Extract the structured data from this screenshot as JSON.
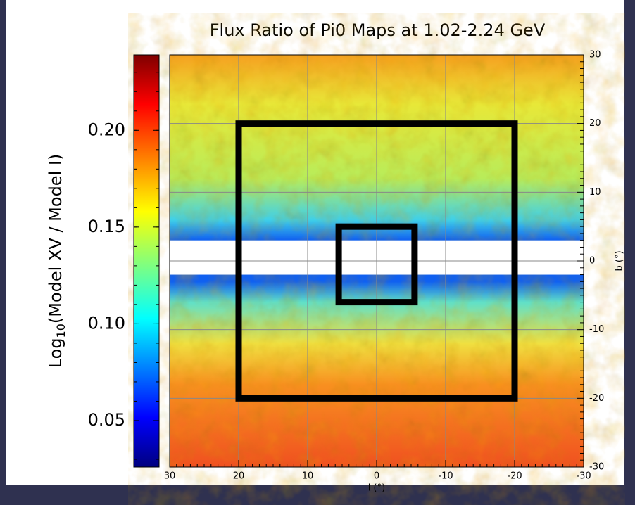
{
  "chart_data": {
    "type": "heatmap",
    "title": "Flux Ratio of Pi0 Maps at 1.02-2.24 GeV",
    "xlabel": "l (°)",
    "ylabel": "b (°)",
    "xlim": [
      30,
      -30
    ],
    "ylim": [
      -30,
      30
    ],
    "xticks": [
      30,
      20,
      10,
      0,
      -10,
      -20,
      -30
    ],
    "yticks": [
      -30,
      -20,
      -10,
      0,
      10,
      20,
      30
    ],
    "grid": true,
    "mask_b": [
      -2,
      3
    ],
    "regions": [
      {
        "l": [
          20,
          -20
        ],
        "b": [
          -20,
          20
        ]
      },
      {
        "l": [
          5.5,
          -5.5
        ],
        "b": [
          -6,
          5
        ]
      }
    ],
    "colorbar": {
      "label": {
        "base": "Log",
        "subscript": "10",
        "rest": "(Model XV / Model I)"
      },
      "clim": [
        0.026,
        0.239
      ],
      "ticks": [
        0.05,
        {
          "value": 0.1,
          "label": "0.10"
        },
        0.15,
        {
          "value": 0.2,
          "label": "0.20"
        }
      ]
    }
  }
}
